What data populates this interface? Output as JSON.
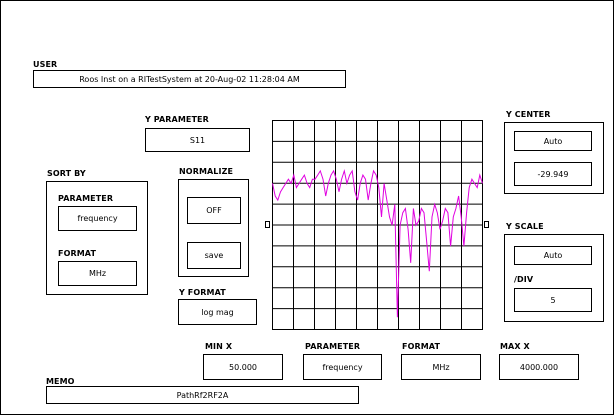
{
  "user": {
    "label": "USER",
    "value": "Roos Inst on a RITestSystem at 20-Aug-02  11:28:04 AM"
  },
  "y_parameter": {
    "label": "Y PARAMETER",
    "value": "S11"
  },
  "sort_by": {
    "label": "SORT BY",
    "parameter_label": "PARAMETER",
    "parameter_value": "frequency",
    "format_label": "FORMAT",
    "format_value": "MHz"
  },
  "normalize": {
    "label": "NORMALIZE",
    "off_label": "OFF",
    "save_label": "save"
  },
  "y_format": {
    "label": "Y FORMAT",
    "value": "log mag"
  },
  "y_center": {
    "label": "Y CENTER",
    "mode": "Auto",
    "value": "-29.949"
  },
  "y_scale": {
    "label": "Y SCALE",
    "mode": "Auto",
    "div_label": "/DIV",
    "div_value": "5"
  },
  "x_axis": {
    "min_label": "MIN X",
    "min_value": "50.000",
    "parameter_label": "PARAMETER",
    "parameter_value": "frequency",
    "format_label": "FORMAT",
    "format_value": "MHz",
    "max_label": "MAX X",
    "max_value": "4000.000"
  },
  "memo": {
    "label": "MEMO",
    "value": "PathRf2RF2A"
  },
  "colors": {
    "trace": "#e000e0",
    "grid": "#000000",
    "background": "#ffffff"
  },
  "chart_data": {
    "type": "line",
    "xlim": [
      50,
      4000
    ],
    "ylim": [
      -54.949,
      -4.949
    ],
    "grid": true,
    "series": [
      {
        "x": [
          50,
          100,
          150,
          200,
          250,
          300,
          350,
          400,
          450,
          500,
          550,
          600,
          650,
          700,
          750,
          800,
          850,
          900,
          950,
          1000,
          1050,
          1100,
          1150,
          1200,
          1250,
          1300,
          1350,
          1400,
          1450,
          1500,
          1550,
          1600,
          1650,
          1700,
          1750,
          1800,
          1850,
          1900,
          1950,
          2000,
          2050,
          2100,
          2150,
          2200,
          2250,
          2300,
          2350,
          2400,
          2450,
          2500,
          2550,
          2600,
          2650,
          2700,
          2750,
          2800,
          2850,
          2900,
          2950,
          3000,
          3050,
          3100,
          3150,
          3200,
          3250,
          3300,
          3350,
          3400,
          3450,
          3500,
          3550,
          3600,
          3650,
          3700,
          3750,
          3800,
          3850,
          3900,
          3950,
          4000
        ],
        "y": [
          -20,
          -23,
          -24,
          -22,
          -21,
          -20,
          -19,
          -20,
          -18,
          -21,
          -20,
          -19,
          -18,
          -20,
          -21,
          -19,
          -19,
          -18,
          -17,
          -19,
          -23,
          -20,
          -18,
          -17,
          -19,
          -22,
          -19,
          -17,
          -20,
          -18,
          -17,
          -22,
          -24,
          -20,
          -18,
          -19,
          -24,
          -20,
          -17,
          -18,
          -21,
          -28,
          -20,
          -24,
          -28,
          -30,
          -25,
          -52,
          -30,
          -27,
          -26,
          -31,
          -39,
          -26,
          -30,
          -29,
          -26,
          -27,
          -34,
          -41,
          -28,
          -25,
          -27,
          -31,
          -29,
          -26,
          -27,
          -35,
          -28,
          -26,
          -23,
          -28,
          -35,
          -27,
          -21,
          -19,
          -20,
          -21,
          -18,
          -20
        ]
      }
    ]
  }
}
